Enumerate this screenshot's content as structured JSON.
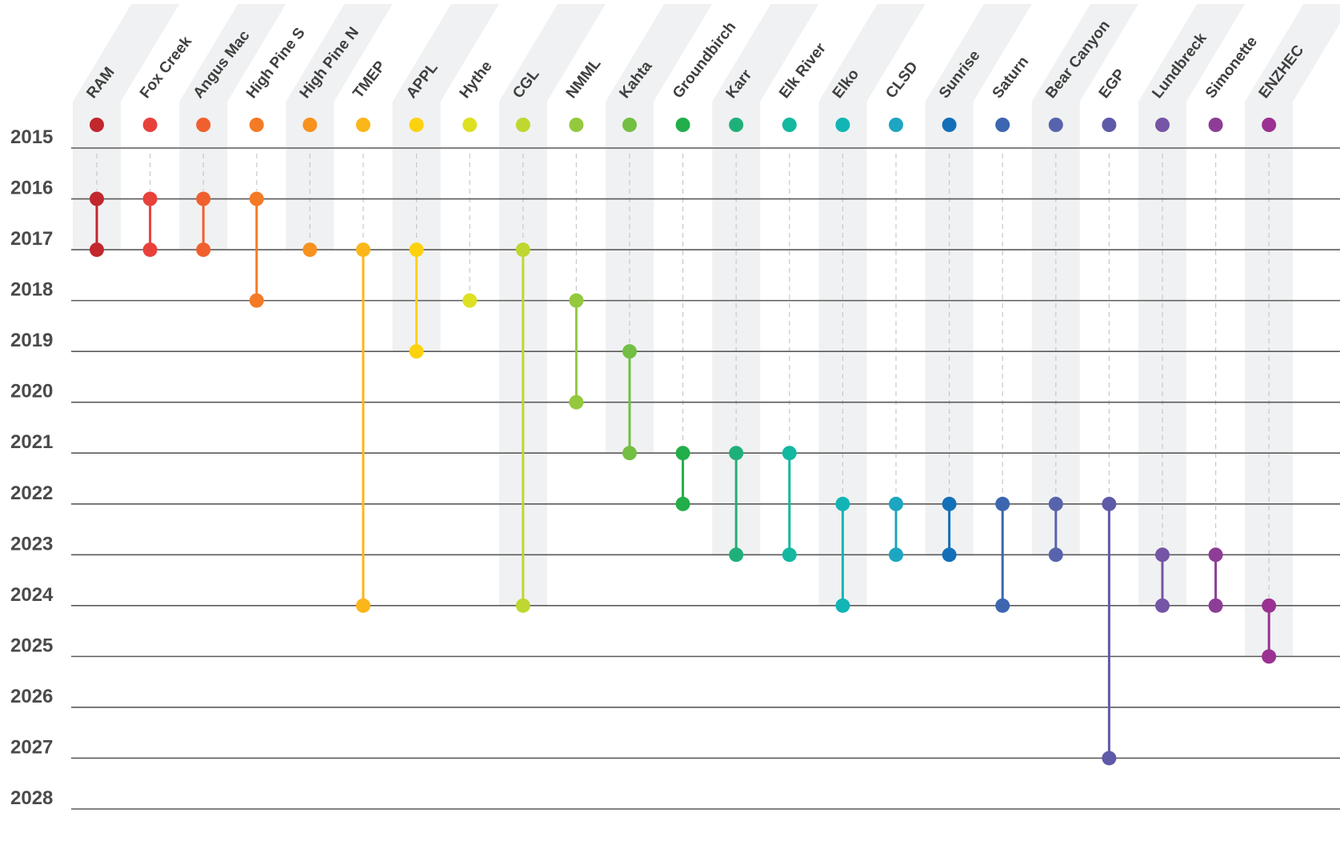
{
  "chart_data": {
    "type": "timeline-range",
    "y_axis": {
      "ticks": [
        "2015",
        "2016",
        "2017",
        "2018",
        "2019",
        "2020",
        "2021",
        "2022",
        "2023",
        "2024",
        "2025",
        "2026",
        "2027",
        "2028"
      ],
      "ylim": [
        2015,
        2028
      ],
      "grid": true
    },
    "projects": [
      {
        "name": "RAM",
        "start": 2016,
        "end": 2017,
        "color": "#c1272d",
        "band_until": 2017
      },
      {
        "name": "Fox Creek",
        "start": 2016,
        "end": 2017,
        "color": "#e8413c",
        "band_until": null
      },
      {
        "name": "Angus Mac",
        "start": 2016,
        "end": 2017,
        "color": "#f0602e",
        "band_until": 2017
      },
      {
        "name": "High Pine S",
        "start": 2016,
        "end": 2018,
        "color": "#f47b25",
        "band_until": null
      },
      {
        "name": "High Pine N",
        "start": 2017,
        "end": 2017,
        "color": "#f7921e",
        "band_until": 2017
      },
      {
        "name": "TMEP",
        "start": 2017,
        "end": 2024,
        "color": "#fbb619",
        "band_until": null
      },
      {
        "name": "APPL",
        "start": 2017,
        "end": 2019,
        "color": "#fcd20f",
        "band_until": 2019
      },
      {
        "name": "Hythe",
        "start": 2018,
        "end": 2018,
        "color": "#dee022",
        "band_until": null
      },
      {
        "name": "CGL",
        "start": 2017,
        "end": 2024,
        "color": "#bfd730",
        "band_until": 2024
      },
      {
        "name": "NMML",
        "start": 2018,
        "end": 2020,
        "color": "#94c83d",
        "band_until": null
      },
      {
        "name": "Kahta",
        "start": 2019,
        "end": 2021,
        "color": "#72bf44",
        "band_until": 2021
      },
      {
        "name": "Groundbirch",
        "start": 2021,
        "end": 2022,
        "color": "#22ae4a",
        "band_until": null
      },
      {
        "name": "Karr",
        "start": 2021,
        "end": 2023,
        "color": "#1fb07a",
        "band_until": 2023
      },
      {
        "name": "Elk River",
        "start": 2021,
        "end": 2023,
        "color": "#13b8a0",
        "band_until": null
      },
      {
        "name": "Elko",
        "start": 2022,
        "end": 2024,
        "color": "#11b5b5",
        "band_until": 2024
      },
      {
        "name": "CLSD",
        "start": 2022,
        "end": 2023,
        "color": "#1ca6c1",
        "band_until": null
      },
      {
        "name": "Sunrise",
        "start": 2022,
        "end": 2023,
        "color": "#1370b8",
        "band_until": 2023
      },
      {
        "name": "Saturn",
        "start": 2022,
        "end": 2024,
        "color": "#3d66b0",
        "band_until": null
      },
      {
        "name": "Bear Canyon",
        "start": 2022,
        "end": 2023,
        "color": "#5763ad",
        "band_until": 2023
      },
      {
        "name": "EGP",
        "start": 2022,
        "end": 2027,
        "color": "#5f5aa8",
        "band_until": null
      },
      {
        "name": "Lundbreck",
        "start": 2023,
        "end": 2024,
        "color": "#7455a6",
        "band_until": 2024
      },
      {
        "name": "Simonette",
        "start": 2023,
        "end": 2024,
        "color": "#8d3d96",
        "band_until": null
      },
      {
        "name": "ENZHEC",
        "start": 2024,
        "end": 2025,
        "color": "#9b3192",
        "band_until": 2025
      }
    ]
  }
}
